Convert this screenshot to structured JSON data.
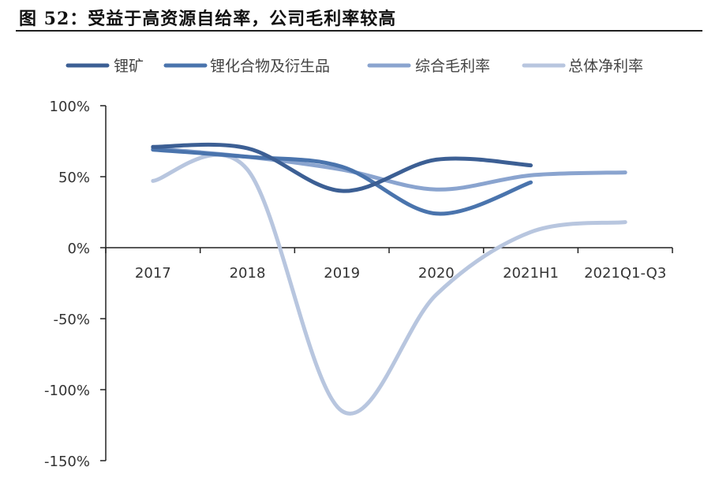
{
  "figure_title": "图 52：受益于高资源自给率，公司毛利率较高",
  "chart_data": {
    "type": "line",
    "categories": [
      "2017",
      "2018",
      "2019",
      "2020",
      "2021H1",
      "2021Q1-Q3"
    ],
    "y_tick_labels": [
      "100%",
      "50%",
      "0%",
      "-50%",
      "-100%",
      "-150%"
    ],
    "ylim": [
      -150,
      100
    ],
    "y_unit": "%",
    "legend_position": "top",
    "grid": false,
    "series": [
      {
        "name": "锂矿",
        "color": "#3c5f94",
        "values": [
          71,
          70,
          40,
          62,
          58,
          null
        ]
      },
      {
        "name": "锂化合物及衍生品",
        "color": "#4a74ad",
        "values": [
          69,
          64,
          57,
          24,
          46,
          null
        ]
      },
      {
        "name": "综合毛利率",
        "color": "#8aa4cf",
        "values": [
          70,
          64,
          55,
          41,
          51,
          53
        ]
      },
      {
        "name": "总体净利率",
        "color": "#b8c6df",
        "values": [
          47,
          55,
          -115,
          -33,
          11,
          18
        ]
      }
    ]
  }
}
